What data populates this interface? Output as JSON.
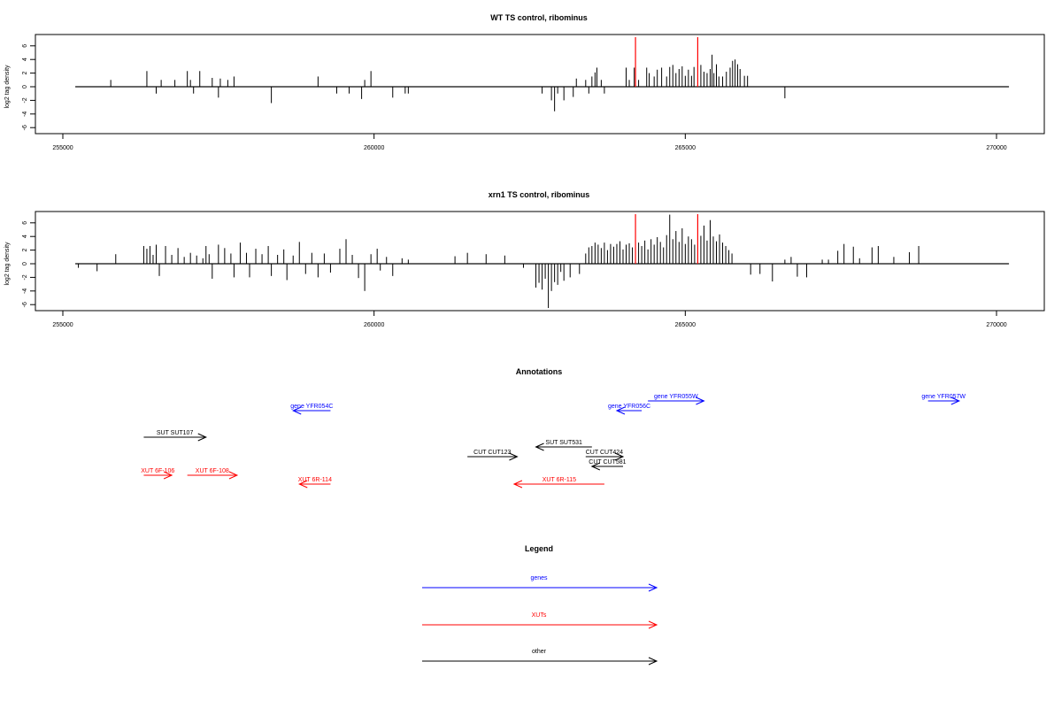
{
  "colors": {
    "gene": "#0000ff",
    "xut": "#ff0000",
    "other": "#000000",
    "highlight": "#ff0000",
    "axis": "#000000"
  },
  "chart_data": [
    {
      "type": "bar",
      "title": "WT TS control, ribominus",
      "ylabel": "log2 tag density",
      "xlim": [
        255000,
        270200
      ],
      "ylim": [
        -7,
        7.5
      ],
      "xticks": [
        255000,
        260000,
        265000,
        270000
      ],
      "yticks": [
        -6,
        -4,
        -2,
        0,
        2,
        4,
        6
      ],
      "baseline": [
        255200,
        270200
      ],
      "highlight_x": [
        264200,
        265200
      ],
      "bars": [
        [
          255770,
          1.0
        ],
        [
          256350,
          2.3
        ],
        [
          256500,
          -1.0
        ],
        [
          256580,
          1.0
        ],
        [
          256800,
          1.0
        ],
        [
          257000,
          2.3
        ],
        [
          257050,
          1.0
        ],
        [
          257100,
          -1.0
        ],
        [
          257200,
          2.3
        ],
        [
          257400,
          1.3
        ],
        [
          257500,
          -1.6
        ],
        [
          257530,
          1.2
        ],
        [
          257650,
          1.0
        ],
        [
          257750,
          1.5
        ],
        [
          258350,
          -2.4
        ],
        [
          259100,
          1.5
        ],
        [
          259400,
          -1.0
        ],
        [
          259600,
          -1.0
        ],
        [
          259800,
          -1.8
        ],
        [
          259850,
          1.0
        ],
        [
          259950,
          2.3
        ],
        [
          260300,
          -1.6
        ],
        [
          260500,
          -1.0
        ],
        [
          260550,
          -1.0
        ],
        [
          262700,
          -1.0
        ],
        [
          262850,
          -2.0
        ],
        [
          262900,
          -3.6
        ],
        [
          262950,
          -1.0
        ],
        [
          263050,
          -2.0
        ],
        [
          263200,
          -1.5
        ],
        [
          263250,
          1.2
        ],
        [
          263400,
          1.0
        ],
        [
          263450,
          -1.0
        ],
        [
          263500,
          1.5
        ],
        [
          263550,
          2.1
        ],
        [
          263580,
          2.8
        ],
        [
          263650,
          1.0
        ],
        [
          263700,
          -1.0
        ],
        [
          264050,
          2.8
        ],
        [
          264100,
          1.0
        ],
        [
          264180,
          2.8
        ],
        [
          264250,
          1.0
        ],
        [
          264380,
          2.8
        ],
        [
          264420,
          2.0
        ],
        [
          264500,
          1.5
        ],
        [
          264550,
          2.5
        ],
        [
          264620,
          2.8
        ],
        [
          264700,
          1.5
        ],
        [
          264750,
          2.9
        ],
        [
          264800,
          3.2
        ],
        [
          264850,
          2.0
        ],
        [
          264900,
          2.6
        ],
        [
          264950,
          3.0
        ],
        [
          265000,
          1.6
        ],
        [
          265050,
          2.5
        ],
        [
          265100,
          1.6
        ],
        [
          265140,
          2.9
        ],
        [
          265250,
          3.2
        ],
        [
          265300,
          2.2
        ],
        [
          265350,
          2.0
        ],
        [
          265400,
          2.6
        ],
        [
          265430,
          4.7
        ],
        [
          265460,
          2.0
        ],
        [
          265500,
          3.3
        ],
        [
          265540,
          1.5
        ],
        [
          265600,
          1.5
        ],
        [
          265660,
          2.2
        ],
        [
          265720,
          2.8
        ],
        [
          265760,
          3.8
        ],
        [
          265800,
          4.0
        ],
        [
          265840,
          3.3
        ],
        [
          265880,
          2.6
        ],
        [
          265950,
          1.6
        ],
        [
          266000,
          1.6
        ],
        [
          266600,
          -1.7
        ]
      ]
    },
    {
      "type": "bar",
      "title": "xrn1 TS control, ribominus",
      "ylabel": "log2 tag density",
      "xlim": [
        255000,
        270200
      ],
      "ylim": [
        -7,
        7.5
      ],
      "xticks": [
        255000,
        260000,
        265000,
        270000
      ],
      "yticks": [
        -6,
        -4,
        -2,
        0,
        2,
        4,
        6
      ],
      "baseline": [
        255200,
        270200
      ],
      "highlight_x": [
        264200,
        265200
      ],
      "bars": [
        [
          255250,
          -0.6
        ],
        [
          255550,
          -1.1
        ],
        [
          255850,
          1.4
        ],
        [
          256300,
          2.6
        ],
        [
          256350,
          2.2
        ],
        [
          256400,
          2.6
        ],
        [
          256450,
          1.3
        ],
        [
          256500,
          2.8
        ],
        [
          256550,
          -1.8
        ],
        [
          256650,
          2.6
        ],
        [
          256750,
          1.3
        ],
        [
          256850,
          2.3
        ],
        [
          256950,
          1.0
        ],
        [
          257050,
          1.6
        ],
        [
          257150,
          1.2
        ],
        [
          257250,
          0.8
        ],
        [
          257300,
          2.6
        ],
        [
          257350,
          1.4
        ],
        [
          257400,
          -2.2
        ],
        [
          257500,
          2.8
        ],
        [
          257600,
          2.3
        ],
        [
          257700,
          1.5
        ],
        [
          257750,
          -2.0
        ],
        [
          257850,
          3.1
        ],
        [
          257950,
          1.6
        ],
        [
          258000,
          -2.0
        ],
        [
          258100,
          2.2
        ],
        [
          258200,
          1.4
        ],
        [
          258300,
          2.6
        ],
        [
          258350,
          -1.8
        ],
        [
          258450,
          1.3
        ],
        [
          258550,
          2.1
        ],
        [
          258600,
          -2.4
        ],
        [
          258700,
          1.2
        ],
        [
          258800,
          3.2
        ],
        [
          258900,
          -1.5
        ],
        [
          259000,
          1.6
        ],
        [
          259100,
          -2.0
        ],
        [
          259200,
          1.5
        ],
        [
          259300,
          -1.3
        ],
        [
          259450,
          2.2
        ],
        [
          259550,
          3.6
        ],
        [
          259650,
          1.3
        ],
        [
          259750,
          -2.1
        ],
        [
          259850,
          -4.0
        ],
        [
          259950,
          1.4
        ],
        [
          260050,
          2.2
        ],
        [
          260100,
          -1.0
        ],
        [
          260200,
          1.0
        ],
        [
          260300,
          -1.8
        ],
        [
          260450,
          0.8
        ],
        [
          260550,
          0.6
        ],
        [
          261300,
          1.1
        ],
        [
          261500,
          1.6
        ],
        [
          261800,
          1.4
        ],
        [
          262100,
          1.2
        ],
        [
          262400,
          -0.6
        ],
        [
          262600,
          -3.5
        ],
        [
          262650,
          -2.8
        ],
        [
          262700,
          -3.8
        ],
        [
          262750,
          -2.2
        ],
        [
          262800,
          -6.5
        ],
        [
          262850,
          -4.0
        ],
        [
          262900,
          -2.7
        ],
        [
          262950,
          -3.1
        ],
        [
          263000,
          -1.2
        ],
        [
          263050,
          -2.5
        ],
        [
          263150,
          -2.0
        ],
        [
          263300,
          -1.5
        ],
        [
          263400,
          1.5
        ],
        [
          263450,
          2.4
        ],
        [
          263500,
          2.6
        ],
        [
          263550,
          3.1
        ],
        [
          263600,
          2.8
        ],
        [
          263650,
          2.3
        ],
        [
          263700,
          3.1
        ],
        [
          263750,
          2.0
        ],
        [
          263800,
          2.9
        ],
        [
          263850,
          2.5
        ],
        [
          263900,
          2.9
        ],
        [
          263950,
          3.3
        ],
        [
          264000,
          2.1
        ],
        [
          264050,
          2.8
        ],
        [
          264100,
          3.0
        ],
        [
          264150,
          2.4
        ],
        [
          264250,
          3.1
        ],
        [
          264300,
          2.6
        ],
        [
          264350,
          3.4
        ],
        [
          264400,
          2.1
        ],
        [
          264450,
          3.6
        ],
        [
          264500,
          2.8
        ],
        [
          264550,
          3.9
        ],
        [
          264600,
          3.2
        ],
        [
          264650,
          2.4
        ],
        [
          264700,
          4.2
        ],
        [
          264750,
          7.2
        ],
        [
          264800,
          3.6
        ],
        [
          264850,
          4.8
        ],
        [
          264900,
          3.2
        ],
        [
          264950,
          5.2
        ],
        [
          265000,
          2.9
        ],
        [
          265050,
          4.0
        ],
        [
          265100,
          3.6
        ],
        [
          265150,
          2.8
        ],
        [
          265250,
          4.1
        ],
        [
          265300,
          5.6
        ],
        [
          265350,
          3.4
        ],
        [
          265400,
          6.4
        ],
        [
          265450,
          4.0
        ],
        [
          265500,
          3.3
        ],
        [
          265550,
          4.3
        ],
        [
          265600,
          3.1
        ],
        [
          265650,
          2.6
        ],
        [
          265700,
          2.0
        ],
        [
          265750,
          1.5
        ],
        [
          266050,
          -1.6
        ],
        [
          266200,
          -1.5
        ],
        [
          266400,
          -2.6
        ],
        [
          266600,
          0.6
        ],
        [
          266700,
          1.0
        ],
        [
          266800,
          -1.9
        ],
        [
          266950,
          -2.0
        ],
        [
          267200,
          0.6
        ],
        [
          267300,
          0.6
        ],
        [
          267450,
          1.9
        ],
        [
          267550,
          2.9
        ],
        [
          267700,
          2.5
        ],
        [
          267800,
          0.8
        ],
        [
          268000,
          2.4
        ],
        [
          268100,
          2.6
        ],
        [
          268350,
          1.0
        ],
        [
          268600,
          1.7
        ],
        [
          268750,
          2.6
        ]
      ]
    }
  ],
  "annotations": {
    "title": "Annotations",
    "items": [
      {
        "label": "gene YFR054C",
        "kind": "gene",
        "start": 259300,
        "end": 258700,
        "row": 1
      },
      {
        "label": "gene YFR055W",
        "kind": "gene",
        "start": 264400,
        "end": 265300,
        "row": 0
      },
      {
        "label": "gene YFR056C",
        "kind": "gene",
        "start": 264300,
        "end": 263900,
        "row": 1
      },
      {
        "label": "gene YFR057W",
        "kind": "gene",
        "start": 268900,
        "end": 269400,
        "row": 0
      },
      {
        "label": "SUT SUT107",
        "kind": "other",
        "start": 256300,
        "end": 257300,
        "row": 2
      },
      {
        "label": "SUT SUT531",
        "kind": "other",
        "start": 263500,
        "end": 262600,
        "row": 3
      },
      {
        "label": "CUT CUT123",
        "kind": "other",
        "start": 261500,
        "end": 262300,
        "row": 4
      },
      {
        "label": "CUT CUT424",
        "kind": "other",
        "start": 263400,
        "end": 264000,
        "row": 4
      },
      {
        "label": "CUT CUT581",
        "kind": "other",
        "start": 264000,
        "end": 263500,
        "row": 5
      },
      {
        "label": "XUT 6F-106",
        "kind": "xut",
        "start": 256300,
        "end": 256750,
        "row": 6
      },
      {
        "label": "XUT 6F-108",
        "kind": "xut",
        "start": 257000,
        "end": 257800,
        "row": 6
      },
      {
        "label": "XUT 6R-114",
        "kind": "xut",
        "start": 259300,
        "end": 258800,
        "row": 7
      },
      {
        "label": "XUT 6R-115",
        "kind": "xut",
        "start": 263700,
        "end": 262250,
        "row": 7
      }
    ]
  },
  "legend": {
    "title": "Legend",
    "items": [
      {
        "label": "genes",
        "kind": "gene"
      },
      {
        "label": "XUTs",
        "kind": "xut"
      },
      {
        "label": "other",
        "kind": "other"
      }
    ]
  }
}
